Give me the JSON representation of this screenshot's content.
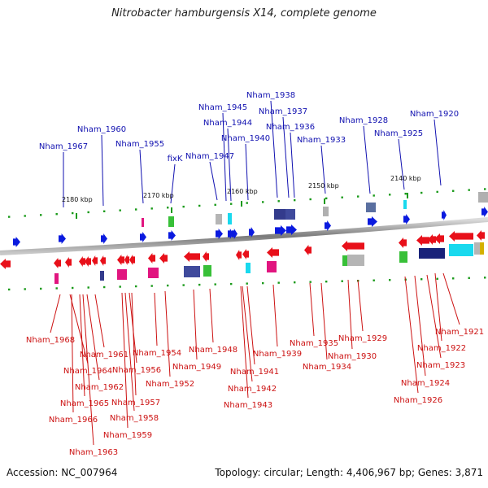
{
  "title": "Nitrobacter hamburgensis X14, complete genome",
  "footer": {
    "accession": "Accession: NC_007964",
    "summary": "Topology: circular; Length: 4,406,967 bp; Genes: 3,871"
  },
  "ticks": [
    "2180 kbp",
    "2170 kbp",
    "2160 kbp",
    "2150 kbp",
    "2140 kbp"
  ],
  "top_labels": [
    "Nham_1938",
    "Nham_1945",
    "Nham_1937",
    "Nham_1944",
    "Nham_1936",
    "Nham_1960",
    "Nham_1940",
    "Nham_1928",
    "Nham_1920",
    "Nham_1967",
    "Nham_1955",
    "Nham_1933",
    "Nham_1925",
    "fixK",
    "Nham_1947"
  ],
  "bottom_labels": [
    "Nham_1968",
    "Nham_1961",
    "Nham_1954",
    "Nham_1964",
    "Nham_1956",
    "Nham_1962",
    "Nham_1952",
    "Nham_1965",
    "Nham_1957",
    "Nham_1966",
    "Nham_1958",
    "Nham_1959",
    "Nham_1963",
    "Nham_1948",
    "Nham_1949",
    "Nham_1939",
    "Nham_1941",
    "Nham_1942",
    "Nham_1943",
    "Nham_1935",
    "Nham_1934",
    "Nham_1929",
    "Nham_1930",
    "Nham_1921",
    "Nham_1922",
    "Nham_1923",
    "Nham_1924",
    "Nham_1926"
  ],
  "colors": {
    "forward": "#0a1adf",
    "reverse": "#e8101a",
    "forward_label": "#1010b0",
    "reverse_label": "#cc1111",
    "backbone": "#8a8a8a",
    "dots": "#1a9a1a"
  }
}
